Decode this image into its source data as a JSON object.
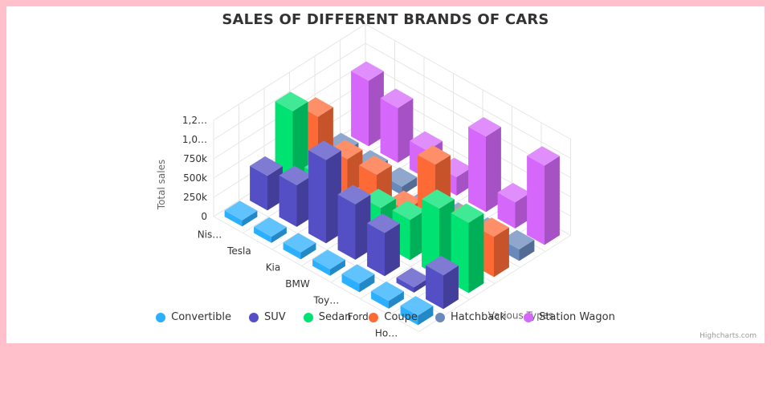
{
  "chart_data": {
    "type": "bar",
    "variant": "3d-column",
    "title": "SALES OF DIFFERENT BRANDS OF CARS",
    "ylabel": "Total sales",
    "zlabel": "Various Types",
    "ylim": [
      0,
      1250000
    ],
    "yticks": [
      "0",
      "250k",
      "500k",
      "750k",
      "1,0…",
      "1,2…"
    ],
    "categories": [
      "Nis…",
      "Tesla",
      "Kia",
      "BMW",
      "Toy…",
      "Ford",
      "Ho…"
    ],
    "categories_full": [
      "Nissan",
      "Tesla",
      "Kia",
      "BMW",
      "Toyota",
      "Ford",
      "Honda"
    ],
    "grid": true,
    "legend_position": "bottom",
    "series": [
      {
        "name": "Convertible",
        "color": "#2caffe",
        "values": [
          80000,
          80000,
          90000,
          85000,
          110000,
          100000,
          125000
        ]
      },
      {
        "name": "SUV",
        "color": "#544fc5",
        "values": [
          450000,
          540000,
          1080000,
          720000,
          560000,
          70000,
          440000
        ]
      },
      {
        "name": "Sedan",
        "color": "#00e272",
        "values": [
          1080000,
          440000,
          250000,
          460000,
          520000,
          880000,
          910000
        ]
      },
      {
        "name": "Coupe",
        "color": "#fe6a35",
        "values": [
          800000,
          460000,
          470000,
          230000,
          1030000,
          470000,
          520000
        ]
      },
      {
        "name": "Hatchback",
        "color": "#6b8abc",
        "values": [
          130000,
          120000,
          110000,
          70000,
          80000,
          100000,
          150000
        ]
      },
      {
        "name": "Station Wagon",
        "color": "#d568fb",
        "values": [
          850000,
          710000,
          370000,
          240000,
          980000,
          340000,
          1030000
        ]
      }
    ]
  },
  "credits": "Highcharts.com"
}
